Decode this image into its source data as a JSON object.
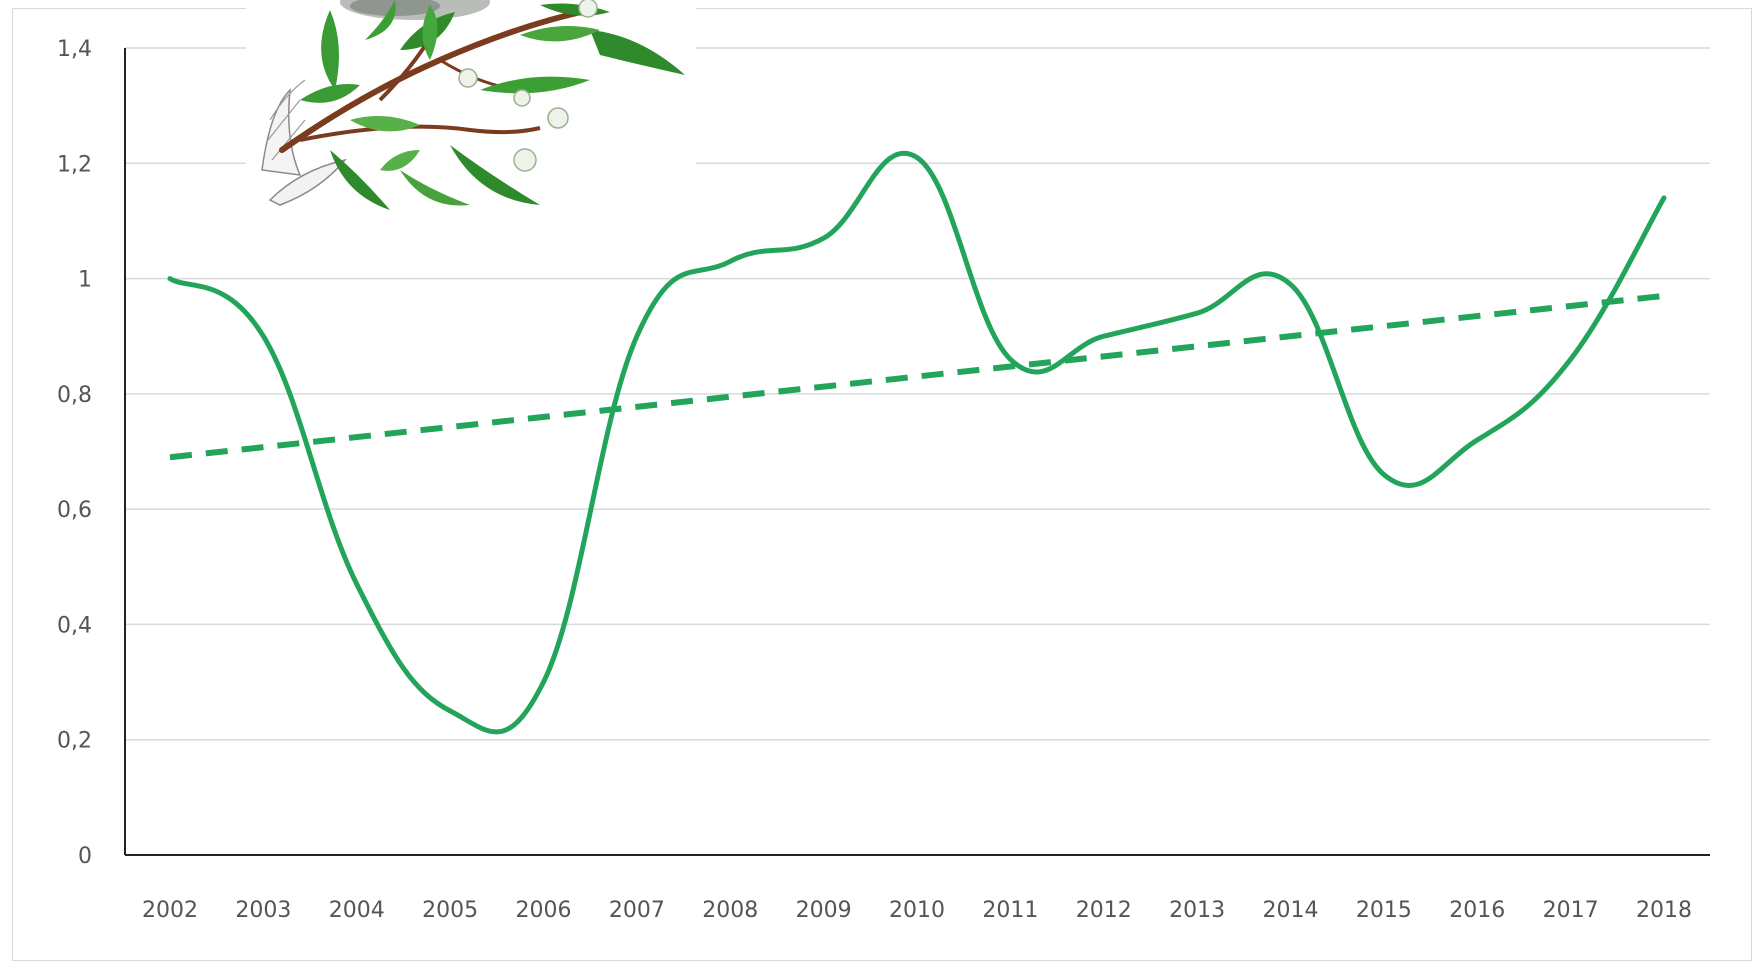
{
  "chart_data": {
    "type": "line",
    "title": "",
    "xlabel": "",
    "ylabel": "",
    "categories": [
      "2002",
      "2003",
      "2004",
      "2005",
      "2006",
      "2007",
      "2008",
      "2009",
      "2010",
      "2011",
      "2012",
      "2013",
      "2014",
      "2015",
      "2016",
      "2017",
      "2018"
    ],
    "series": [
      {
        "values": [
          1.0,
          0.9,
          0.47,
          0.25,
          0.3,
          0.9,
          1.03,
          1.07,
          1.21,
          0.86,
          0.9,
          0.94,
          0.99,
          0.66,
          0.72,
          0.86,
          1.14
        ],
        "color": "#22a55a",
        "style": "solid"
      }
    ],
    "trendline": {
      "start": 0.69,
      "end": 0.97,
      "color": "#22a55a",
      "style": "dashed"
    },
    "ylim": [
      0,
      1.4
    ],
    "yticks": [
      0,
      0.2,
      0.4,
      0.6,
      0.8,
      1,
      1.2,
      1.4
    ],
    "ytick_labels": [
      "0",
      "0,2",
      "0,4",
      "0,6",
      "0,8",
      "1",
      "1,2",
      "1,4"
    ],
    "grid": true,
    "legend": "none",
    "decoration": "botanical-branch-illustration"
  }
}
